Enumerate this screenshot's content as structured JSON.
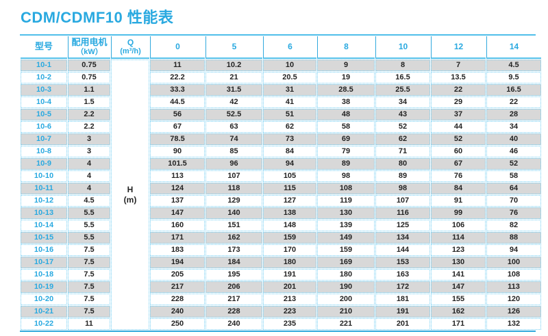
{
  "title": "CDM/CDMF10 性能表",
  "colors": {
    "accent_blue": "#29a9e0",
    "rule_blue": "#4fbeea",
    "dotted_blue": "#6fcdf3",
    "stripe_gray": "#d8d8d8",
    "text_dark": "#232323"
  },
  "table": {
    "headers": {
      "model": "型号",
      "motor_line1": "配用电机",
      "motor_line2": "（kW）",
      "q_line1": "Q",
      "q_line2": "(m³/h)"
    },
    "flow_columns": [
      "0",
      "5",
      "6",
      "8",
      "10",
      "12",
      "14"
    ],
    "h_label": {
      "line1": "H",
      "line2": "(m)"
    },
    "rows": [
      {
        "model": "10-1",
        "kw": "0.75",
        "values": [
          "11",
          "10.2",
          "10",
          "9",
          "8",
          "7",
          "4.5"
        ]
      },
      {
        "model": "10-2",
        "kw": "0.75",
        "values": [
          "22.2",
          "21",
          "20.5",
          "19",
          "16.5",
          "13.5",
          "9.5"
        ]
      },
      {
        "model": "10-3",
        "kw": "1.1",
        "values": [
          "33.3",
          "31.5",
          "31",
          "28.5",
          "25.5",
          "22",
          "16.5"
        ]
      },
      {
        "model": "10-4",
        "kw": "1.5",
        "values": [
          "44.5",
          "42",
          "41",
          "38",
          "34",
          "29",
          "22"
        ]
      },
      {
        "model": "10-5",
        "kw": "2.2",
        "values": [
          "56",
          "52.5",
          "51",
          "48",
          "43",
          "37",
          "28"
        ]
      },
      {
        "model": "10-6",
        "kw": "2.2",
        "values": [
          "67",
          "63",
          "62",
          "58",
          "52",
          "44",
          "34"
        ]
      },
      {
        "model": "10-7",
        "kw": "3",
        "values": [
          "78.5",
          "74",
          "73",
          "69",
          "62",
          "52",
          "40"
        ]
      },
      {
        "model": "10-8",
        "kw": "3",
        "values": [
          "90",
          "85",
          "84",
          "79",
          "71",
          "60",
          "46"
        ]
      },
      {
        "model": "10-9",
        "kw": "4",
        "values": [
          "101.5",
          "96",
          "94",
          "89",
          "80",
          "67",
          "52"
        ]
      },
      {
        "model": "10-10",
        "kw": "4",
        "values": [
          "113",
          "107",
          "105",
          "98",
          "89",
          "76",
          "58"
        ]
      },
      {
        "model": "10-11",
        "kw": "4",
        "values": [
          "124",
          "118",
          "115",
          "108",
          "98",
          "84",
          "64"
        ]
      },
      {
        "model": "10-12",
        "kw": "4.5",
        "values": [
          "137",
          "129",
          "127",
          "119",
          "107",
          "91",
          "70"
        ]
      },
      {
        "model": "10-13",
        "kw": "5.5",
        "values": [
          "147",
          "140",
          "138",
          "130",
          "116",
          "99",
          "76"
        ]
      },
      {
        "model": "10-14",
        "kw": "5.5",
        "values": [
          "160",
          "151",
          "148",
          "139",
          "125",
          "106",
          "82"
        ]
      },
      {
        "model": "10-15",
        "kw": "5.5",
        "values": [
          "171",
          "162",
          "159",
          "149",
          "134",
          "114",
          "88"
        ]
      },
      {
        "model": "10-16",
        "kw": "7.5",
        "values": [
          "183",
          "173",
          "170",
          "159",
          "144",
          "123",
          "94"
        ]
      },
      {
        "model": "10-17",
        "kw": "7.5",
        "values": [
          "194",
          "184",
          "180",
          "169",
          "153",
          "130",
          "100"
        ]
      },
      {
        "model": "10-18",
        "kw": "7.5",
        "values": [
          "205",
          "195",
          "191",
          "180",
          "163",
          "141",
          "108"
        ]
      },
      {
        "model": "10-19",
        "kw": "7.5",
        "values": [
          "217",
          "206",
          "201",
          "190",
          "172",
          "147",
          "113"
        ]
      },
      {
        "model": "10-20",
        "kw": "7.5",
        "values": [
          "228",
          "217",
          "213",
          "200",
          "181",
          "155",
          "120"
        ]
      },
      {
        "model": "10-21",
        "kw": "7.5",
        "values": [
          "240",
          "228",
          "223",
          "210",
          "191",
          "162",
          "126"
        ]
      },
      {
        "model": "10-22",
        "kw": "11",
        "values": [
          "250",
          "240",
          "235",
          "221",
          "201",
          "171",
          "132"
        ]
      }
    ]
  }
}
